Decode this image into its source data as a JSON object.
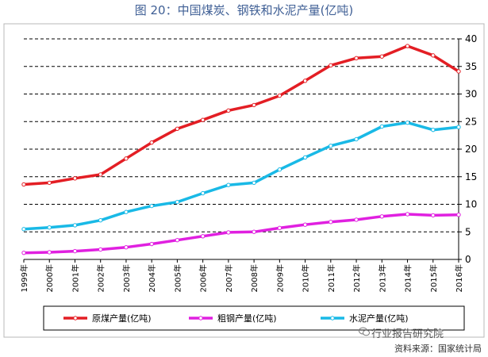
{
  "title": "图 20：中国煤炭、钢铁和水泥产量(亿吨)",
  "source": "资料来源：国家统计局",
  "watermark": "行业报告研究院",
  "chart_data": {
    "type": "line",
    "categories": [
      "1999年",
      "2000年",
      "2001年",
      "2002年",
      "2003年",
      "2004年",
      "2005年",
      "2006年",
      "2007年",
      "2008年",
      "2009年",
      "2010年",
      "2011年",
      "2012年",
      "2013年",
      "2014年",
      "2015年",
      "2016年"
    ],
    "ylim": [
      0,
      40
    ],
    "yticks": [
      0,
      5,
      10,
      15,
      20,
      25,
      30,
      35,
      40
    ],
    "y_axis_side": "right",
    "grid": "horizontal dashed",
    "legend_position": "bottom",
    "series": [
      {
        "name": "原煤产量(亿吨)",
        "color": "#e31e24",
        "values": [
          13.6,
          13.9,
          14.7,
          15.4,
          18.3,
          21.2,
          23.7,
          25.3,
          27.0,
          28.0,
          29.7,
          32.4,
          35.2,
          36.5,
          36.8,
          38.7,
          37.0,
          34.1
        ]
      },
      {
        "name": "粗钢产量(亿吨)",
        "color": "#e020e0",
        "values": [
          1.2,
          1.3,
          1.5,
          1.8,
          2.2,
          2.8,
          3.5,
          4.2,
          4.9,
          5.0,
          5.7,
          6.3,
          6.8,
          7.2,
          7.8,
          8.2,
          8.0,
          8.1
        ]
      },
      {
        "name": "水泥产量(亿吨)",
        "color": "#19b9e6",
        "values": [
          5.5,
          5.8,
          6.2,
          7.1,
          8.6,
          9.7,
          10.4,
          12.0,
          13.5,
          13.9,
          16.3,
          18.5,
          20.6,
          21.8,
          24.1,
          24.8,
          23.5,
          24.0
        ]
      }
    ]
  }
}
